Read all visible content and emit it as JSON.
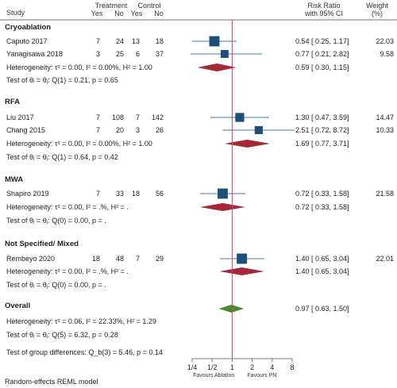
{
  "chart_data": {
    "type": "forest",
    "x_scale": "log2",
    "xlim": [
      0.25,
      8
    ],
    "null_value": 1,
    "header": {
      "study": "Study",
      "treatment": "Treatment",
      "control": "Control",
      "yes": "Yes",
      "no": "No",
      "effect_line1": "Risk Ratio",
      "effect_line2": "with 95% CI",
      "weight_line1": "Weight",
      "weight_line2": "(%)"
    },
    "ticks": [
      {
        "value": 0.25,
        "label": "1/4"
      },
      {
        "value": 0.5,
        "label": "1/2"
      },
      {
        "value": 1,
        "label": "1"
      },
      {
        "value": 2,
        "label": "2"
      },
      {
        "value": 4,
        "label": "4"
      },
      {
        "value": 8,
        "label": "8"
      }
    ],
    "favours_left": "Favours Ablation",
    "favours_right": "Favours PN",
    "footer": "Random-effects REML model",
    "group_differences": "Test of group differences: Q_b(3) = 5.46, p = 0.14",
    "groups": [
      {
        "name": "Cryoablation",
        "studies": [
          {
            "label": "Caputo 2017",
            "t_yes": "7",
            "t_no": "24",
            "c_yes": "13",
            "c_no": "18",
            "rr": 0.54,
            "lo": 0.25,
            "hi": 1.17,
            "ci_text": "0.54 [  0.25,  1.17]",
            "weight": "22.03"
          },
          {
            "label": "Yanagisawa 2018",
            "t_yes": "3",
            "t_no": "25",
            "c_yes": "6",
            "c_no": "37",
            "rr": 0.77,
            "lo": 0.21,
            "hi": 2.82,
            "ci_text": "0.77 [  0.21,  2.82]",
            "weight": "9.58"
          }
        ],
        "pooled": {
          "rr": 0.59,
          "lo": 0.3,
          "hi": 1.15,
          "ci_text": "0.59 [  0.30,  1.15]"
        },
        "heterogeneity": "Heterogeneity: τ² = 0.00, I² = 0.00%, H² = 1.00",
        "test": "Test of θᵢ = θⱼ: Q(1) = 0.21, p = 0.65"
      },
      {
        "name": "RFA",
        "studies": [
          {
            "label": "Liu 2017",
            "t_yes": "7",
            "t_no": "108",
            "c_yes": "7",
            "c_no": "142",
            "rr": 1.3,
            "lo": 0.47,
            "hi": 3.59,
            "ci_text": "1.30 [  0.47,  3.59]",
            "weight": "14.47"
          },
          {
            "label": "Chang 2015",
            "t_yes": "7",
            "t_no": "20",
            "c_yes": "3",
            "c_no": "26",
            "rr": 2.51,
            "lo": 0.72,
            "hi": 8.72,
            "ci_text": "2.51 [  0.72,  8.72]",
            "weight": "10.33"
          }
        ],
        "pooled": {
          "rr": 1.69,
          "lo": 0.77,
          "hi": 3.71,
          "ci_text": "1.69 [  0.77,  3.71]"
        },
        "heterogeneity": "Heterogeneity: τ² = 0.00, I² = 0.00%, H² = 1.00",
        "test": "Test of θᵢ = θⱼ: Q(1) = 0.64, p = 0.42"
      },
      {
        "name": "MWA",
        "studies": [
          {
            "label": "Shapiro 2019",
            "t_yes": "7",
            "t_no": "33",
            "c_yes": "18",
            "c_no": "56",
            "rr": 0.72,
            "lo": 0.33,
            "hi": 1.58,
            "ci_text": "0.72 [  0.33,  1.58]",
            "weight": "21.58"
          }
        ],
        "pooled": {
          "rr": 0.72,
          "lo": 0.33,
          "hi": 1.58,
          "ci_text": "0.72 [  0.33,  1.58]"
        },
        "heterogeneity": "Heterogeneity: τ² = 0.00, I² = .%, H² = .",
        "test": "Test of θᵢ = θⱼ: Q(0) = 0.00, p = ."
      },
      {
        "name": "Not Specified/ Mixed",
        "studies": [
          {
            "label": "Rembeyo 2020",
            "t_yes": "18",
            "t_no": "48",
            "c_yes": "7",
            "c_no": "29",
            "rr": 1.4,
            "lo": 0.65,
            "hi": 3.04,
            "ci_text": "1.40 [  0.65,  3.04]",
            "weight": "22.01"
          }
        ],
        "pooled": {
          "rr": 1.4,
          "lo": 0.65,
          "hi": 3.04,
          "ci_text": "1.40 [  0.65,  3.04]"
        },
        "heterogeneity": "Heterogeneity: τ² = 0.00, I² = .%, H² = .",
        "test": "Test of θᵢ = θⱼ: Q(0) = 0.00, p = ."
      }
    ],
    "overall": {
      "name": "Overall",
      "rr": 0.97,
      "lo": 0.63,
      "hi": 1.5,
      "ci_text": "0.97 [  0.63,  1.50]",
      "heterogeneity": "Heterogeneity: τ² = 0.06, I² = 22.33%, H² = 1.29",
      "test": "Test of θᵢ = θⱼ: Q(5) = 6.32, p = 0.28"
    },
    "colors": {
      "study_marker": "#1f4e79",
      "ci_line": "#4a7ab0",
      "subgroup_diamond": "#a3283a",
      "overall_diamond": "#4f8a2e",
      "null_line": "#c8486a",
      "axis": "#555555"
    }
  }
}
